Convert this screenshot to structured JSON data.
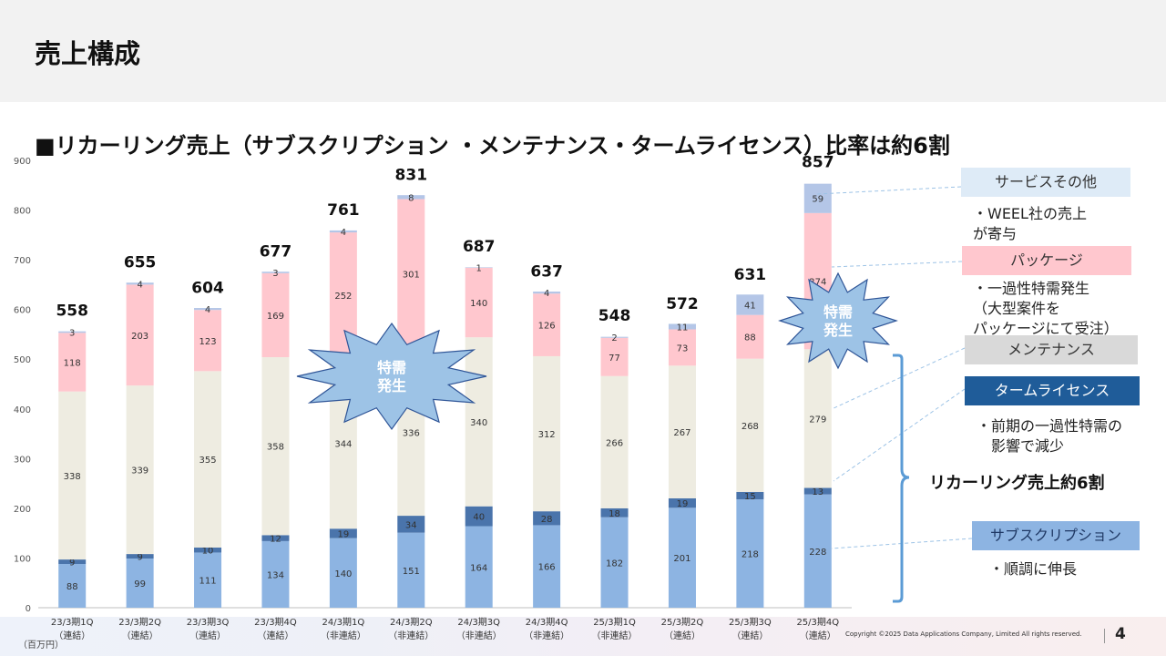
{
  "header": {
    "title": "売上構成"
  },
  "subtitle": "■リカーリング売上（サブスクリプション ・メンテナンス・タームライセンス）比率は約6割",
  "unit_label": "（百万円）",
  "footer": {
    "copyright": "Copyright ©2025  Data Applications Company, Limited All rights reserved.",
    "page_number": "4"
  },
  "colors": {
    "subscription": "#8db4e2",
    "term_license": "#4a74ab",
    "maintenance": "#eeece1",
    "package": "#ffc7ce",
    "service_other": "#b4c6e7",
    "burst": "#9dc3e6",
    "bracket": "#5b9bd5"
  },
  "burst_label": [
    "特需",
    "発生"
  ],
  "legend": [
    {
      "label": "サービスその他",
      "key": "service_other"
    },
    {
      "label": "パッケージ",
      "key": "package"
    },
    {
      "label": "メンテナンス",
      "key": "maintenance"
    },
    {
      "label": "タームライセンス",
      "key": "term_license"
    },
    {
      "label": "サブスクリプション",
      "key": "subscription"
    }
  ],
  "annotations": {
    "service_other": [
      "・WEEL社の売上",
      "が寄与"
    ],
    "package": [
      "・一過性特需発生",
      "（大型案件を",
      "パッケージにて受注）"
    ],
    "term_license": [
      "・前期の一過性特需の",
      "影響で減少"
    ],
    "subscription": [
      "・順調に伸長"
    ]
  },
  "recurring_label": "リカーリング売上約6割",
  "chart_data": {
    "type": "bar",
    "stacked": true,
    "ylim": [
      0,
      900
    ],
    "yticks": [
      0,
      100,
      200,
      300,
      400,
      500,
      600,
      700,
      800,
      900
    ],
    "grid": false,
    "categories": [
      [
        "23/3期1Q",
        "（連結）"
      ],
      [
        "23/3期2Q",
        "（連結）"
      ],
      [
        "23/3期3Q",
        "（連結）"
      ],
      [
        "23/3期4Q",
        "（連結）"
      ],
      [
        "24/3期1Q",
        "（非連結）"
      ],
      [
        "24/3期2Q",
        "（非連結）"
      ],
      [
        "24/3期3Q",
        "（非連結）"
      ],
      [
        "24/3期4Q",
        "（非連結）"
      ],
      [
        "25/3期1Q",
        "（非連結）"
      ],
      [
        "25/3期2Q",
        "（連結）"
      ],
      [
        "25/3期3Q",
        "（連結）"
      ],
      [
        "25/3期4Q",
        "（連結）"
      ]
    ],
    "series": [
      {
        "name": "サブスクリプション",
        "key": "subscription",
        "values": [
          88,
          99,
          111,
          134,
          140,
          151,
          164,
          166,
          182,
          201,
          218,
          228
        ]
      },
      {
        "name": "タームライセンス",
        "key": "term_license",
        "values": [
          9,
          9,
          10,
          12,
          19,
          34,
          40,
          28,
          18,
          19,
          15,
          13
        ]
      },
      {
        "name": "メンテナンス",
        "key": "maintenance",
        "values": [
          338,
          339,
          355,
          358,
          344,
          336,
          340,
          312,
          266,
          267,
          268,
          279
        ]
      },
      {
        "name": "パッケージ",
        "key": "package",
        "values": [
          118,
          203,
          123,
          169,
          252,
          301,
          140,
          126,
          77,
          73,
          88,
          274
        ]
      },
      {
        "name": "サービスその他",
        "key": "service_other",
        "values": [
          3,
          4,
          4,
          3,
          4,
          8,
          1,
          4,
          2,
          11,
          41,
          59
        ]
      }
    ],
    "totals": [
      558,
      655,
      604,
      677,
      761,
      831,
      687,
      637,
      548,
      572,
      631,
      857
    ]
  }
}
